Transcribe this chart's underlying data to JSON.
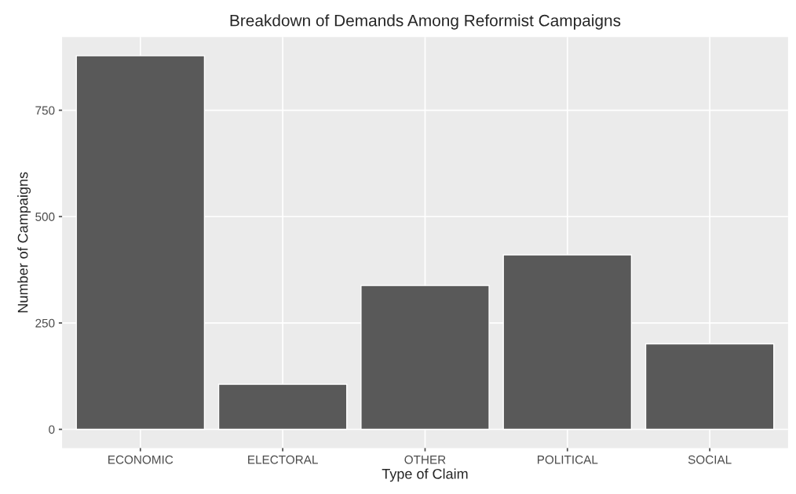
{
  "chart_data": {
    "type": "bar",
    "title": "Breakdown of Demands Among Reformist Campaigns",
    "xlabel": "Type of Claim",
    "ylabel": "Number of Campaigns",
    "categories": [
      "ECONOMIC",
      "ELECTORAL",
      "OTHER",
      "POLITICAL",
      "SOCIAL"
    ],
    "values": [
      878,
      106,
      338,
      410,
      201
    ],
    "color": "#595959",
    "ylim": [
      -44,
      922
    ],
    "yticks": [
      0,
      250,
      500,
      750
    ],
    "grid": true
  }
}
